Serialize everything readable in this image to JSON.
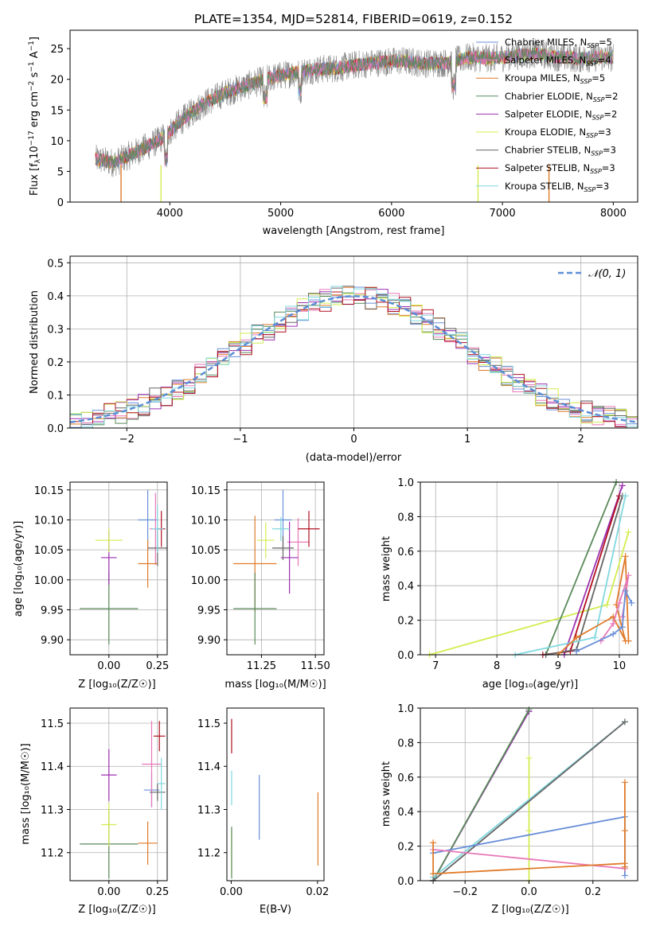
{
  "title": "PLATE=1354, MJD=52814, FIBERID=0619, z=0.152",
  "colors": {
    "chabrier_miles": "#6a8fd8",
    "salpeter_miles": "#e878b8",
    "kroupa_miles": "#e07b2a",
    "chabrier_elodie": "#5a8a5a",
    "salpeter_elodie": "#9b30b0",
    "kroupa_elodie": "#d4ec50",
    "chabrier_stelib": "#666666",
    "salpeter_stelib": "#b01020",
    "kroupa_stelib": "#80d8e0",
    "gaussian": "#5b8ed6",
    "grid": "#b0b0b0"
  },
  "chart_data": [
    {
      "id": "spectrum",
      "type": "line",
      "xlabel": "wavelength [Angstrom, rest frame]",
      "ylabel_prefix": "Flux [f",
      "ylabel_sub": "λ",
      "ylabel_mid": "10",
      "ylabel_exp": "−17",
      "ylabel_rest": " erg cm",
      "ylabel_exp2": "−2",
      "ylabel_rest2": " s",
      "ylabel_exp3": "−1",
      "ylabel_rest3": " A",
      "ylabel_exp4": "−1",
      "ylabel_end": "]",
      "xlim": [
        3100,
        8220
      ],
      "ylim": [
        0,
        28
      ],
      "xticks": [
        4000,
        5000,
        6000,
        7000,
        8000
      ],
      "yticks": [
        0,
        5,
        10,
        15,
        20,
        25
      ],
      "envelope_x": [
        3330,
        3500,
        3700,
        3900,
        4000,
        4100,
        4300,
        4500,
        4700,
        4900,
        5100,
        5300,
        5500,
        5700,
        5900,
        6100,
        6300,
        6500,
        6700,
        6900,
        7100,
        7300,
        7500,
        7700,
        7900,
        8000
      ],
      "envelope_y": [
        7.0,
        6.4,
        8.2,
        10.0,
        11.5,
        13.2,
        16.0,
        17.8,
        19.0,
        20.2,
        21.0,
        21.6,
        21.8,
        22.4,
        22.8,
        23.0,
        22.6,
        22.7,
        23.6,
        23.4,
        23.8,
        24.2,
        23.6,
        23.4,
        23.6,
        23.5
      ],
      "legend": [
        {
          "label": "Chabrier MILES, N",
          "sub": "SSP",
          "n": "=5"
        },
        {
          "label": "Salpeter MILES, N",
          "sub": "SSP",
          "n": "=4"
        },
        {
          "label": "Kroupa MILES, N",
          "sub": "SSP",
          "n": "=5"
        },
        {
          "label": "Chabrier ELODIE, N",
          "sub": "SSP",
          "n": "=2"
        },
        {
          "label": "Salpeter ELODIE, N",
          "sub": "SSP",
          "n": "=2"
        },
        {
          "label": "Kroupa ELODIE, N",
          "sub": "SSP",
          "n": "=3"
        },
        {
          "label": "Chabrier STELIB, N",
          "sub": "SSP",
          "n": "=3"
        },
        {
          "label": "Salpeter STELIB, N",
          "sub": "SSP",
          "n": "=3"
        },
        {
          "label": "Kroupa STELIB, N",
          "sub": "SSP",
          "n": "=3"
        }
      ]
    },
    {
      "id": "residuals",
      "type": "line",
      "xlabel": "(data-model)/error",
      "ylabel": "Normed distribution",
      "xlim": [
        -2.5,
        2.5
      ],
      "ylim": [
        0,
        0.52
      ],
      "xticks": [
        -2,
        -1,
        0,
        1,
        2
      ],
      "yticks": [
        0.0,
        0.1,
        0.2,
        0.3,
        0.4,
        0.5
      ],
      "bin_width": 0.1,
      "legend_label": "𝒩(0, 1)",
      "grid": true
    },
    {
      "id": "age_vs_Z",
      "type": "scatter",
      "xlabel": "Z [log₁₀(Z/Z☉)]",
      "ylabel": "age  [log₁₀(age/yr)]",
      "xlim": [
        -0.2,
        0.3
      ],
      "ylim": [
        9.875,
        10.163
      ],
      "xticks": [
        0.0,
        0.25
      ],
      "xticklabels": [
        "0.00",
        "0.25"
      ],
      "yticks": [
        9.9,
        9.95,
        10.0,
        10.05,
        10.1,
        10.15
      ],
      "yticklabels": [
        "9.90",
        "9.95",
        "10.00",
        "10.05",
        "10.10",
        "10.15"
      ],
      "points": [
        {
          "c": "chabrier_miles",
          "x": 0.2,
          "xe": 0.05,
          "y": 10.1,
          "ye": 0.05
        },
        {
          "c": "salpeter_miles",
          "x": 0.24,
          "xe": 0.03,
          "y": 10.085,
          "ye": 0.06
        },
        {
          "c": "kroupa_miles",
          "x": 0.2,
          "xe": 0.05,
          "y": 10.027,
          "ye": 0.04
        },
        {
          "c": "chabrier_elodie",
          "x": 0.0,
          "xe": 0.15,
          "y": 9.952,
          "ye": 0.06
        },
        {
          "c": "salpeter_elodie",
          "x": 0.0,
          "xe": 0.04,
          "y": 10.037,
          "ye": 0.045
        },
        {
          "c": "kroupa_elodie",
          "x": 0.0,
          "xe": 0.07,
          "y": 10.066,
          "ye": 0.02
        },
        {
          "c": "chabrier_stelib",
          "x": 0.25,
          "xe": 0.05,
          "y": 10.053,
          "ye": 0.03
        },
        {
          "c": "salpeter_stelib",
          "x": 0.27,
          "xe": 0.02,
          "y": 10.085,
          "ye": 0.03
        },
        {
          "c": "kroupa_stelib",
          "x": 0.25,
          "xe": 0.03,
          "y": 10.085,
          "ye": 0.04
        }
      ]
    },
    {
      "id": "age_vs_mass",
      "type": "scatter",
      "xlabel": "mass [log₁₀(M/M☉)]",
      "xlim": [
        11.09,
        11.54
      ],
      "ylim": [
        9.875,
        10.163
      ],
      "xticks": [
        11.25,
        11.5
      ],
      "xticklabels": [
        "11.25",
        "11.50"
      ],
      "yticks": [
        9.9,
        9.95,
        10.0,
        10.05,
        10.1,
        10.15
      ],
      "yticklabels": [
        "9.90",
        "9.95",
        "10.00",
        "10.05",
        "10.10",
        "10.15"
      ],
      "points": [
        {
          "c": "chabrier_miles",
          "x": 11.35,
          "xe": 0.04,
          "y": 10.1,
          "ye": 0.05
        },
        {
          "c": "salpeter_miles",
          "x": 11.42,
          "xe": 0.05,
          "y": 10.063,
          "ye": 0.04
        },
        {
          "c": "kroupa_miles",
          "x": 11.22,
          "xe": 0.1,
          "y": 10.027,
          "ye": 0.08
        },
        {
          "c": "chabrier_elodie",
          "x": 11.22,
          "xe": 0.1,
          "y": 9.952,
          "ye": 0.06
        },
        {
          "c": "salpeter_elodie",
          "x": 11.38,
          "xe": 0.04,
          "y": 10.037,
          "ye": 0.06
        },
        {
          "c": "kroupa_elodie",
          "x": 11.27,
          "xe": 0.04,
          "y": 10.066,
          "ye": 0.03
        },
        {
          "c": "chabrier_stelib",
          "x": 11.35,
          "xe": 0.05,
          "y": 10.053,
          "ye": 0.02
        },
        {
          "c": "salpeter_stelib",
          "x": 11.47,
          "xe": 0.05,
          "y": 10.085,
          "ye": 0.03
        },
        {
          "c": "kroupa_stelib",
          "x": 11.34,
          "xe": 0.04,
          "y": 10.085,
          "ye": 0.02
        }
      ]
    },
    {
      "id": "mass_vs_Z",
      "type": "scatter",
      "xlabel": "Z [log₁₀(Z/Z☉)]",
      "ylabel": "mass [log₁₀(M/M☉)]",
      "xlim": [
        -0.2,
        0.3
      ],
      "ylim": [
        11.135,
        11.535
      ],
      "xticks": [
        0.0,
        0.25
      ],
      "xticklabels": [
        "0.00",
        "0.25"
      ],
      "yticks": [
        11.2,
        11.3,
        11.4,
        11.5
      ],
      "yticklabels": [
        "11.2",
        "11.3",
        "11.4",
        "11.5"
      ],
      "points": [
        {
          "c": "chabrier_miles",
          "x": 0.22,
          "xe": 0.04,
          "y": 11.345,
          "ye": 0.04
        },
        {
          "c": "salpeter_miles",
          "x": 0.22,
          "xe": 0.05,
          "y": 11.405,
          "ye": 0.1
        },
        {
          "c": "kroupa_miles",
          "x": 0.2,
          "xe": 0.05,
          "y": 11.222,
          "ye": 0.05
        },
        {
          "c": "chabrier_elodie",
          "x": 0.0,
          "xe": 0.15,
          "y": 11.22,
          "ye": 0.08
        },
        {
          "c": "salpeter_elodie",
          "x": 0.0,
          "xe": 0.04,
          "y": 11.38,
          "ye": 0.06
        },
        {
          "c": "kroupa_elodie",
          "x": 0.0,
          "xe": 0.04,
          "y": 11.265,
          "ye": 0.05
        },
        {
          "c": "chabrier_stelib",
          "x": 0.25,
          "xe": 0.04,
          "y": 11.34,
          "ye": 0.02
        },
        {
          "c": "salpeter_stelib",
          "x": 0.26,
          "xe": 0.03,
          "y": 11.47,
          "ye": 0.035
        },
        {
          "c": "kroupa_stelib",
          "x": 0.27,
          "xe": 0.02,
          "y": 11.36,
          "ye": 0.06
        }
      ]
    },
    {
      "id": "mass_vs_EBV",
      "type": "scatter",
      "xlabel": "E(B-V)",
      "xlim": [
        -0.001,
        0.0215
      ],
      "ylim": [
        11.135,
        11.535
      ],
      "xticks": [
        0.0,
        0.02
      ],
      "xticklabels": [
        "0.00",
        "0.02"
      ],
      "yticks": [
        11.2,
        11.3,
        11.4,
        11.5
      ],
      "yticklabels": [
        "11.2",
        "11.3",
        "11.4",
        "11.5"
      ],
      "points": [
        {
          "c": "chabrier_miles",
          "x": 0.0065,
          "xe": 0,
          "y": 11.305,
          "ye": 0.075
        },
        {
          "c": "salpeter_stelib",
          "x": 0.0001,
          "xe": 0,
          "y": 11.47,
          "ye": 0.04
        },
        {
          "c": "kroupa_miles",
          "x": 0.0201,
          "xe": 0,
          "y": 11.255,
          "ye": 0.085
        },
        {
          "c": "kroupa_elodie",
          "x": 0.0001,
          "xe": 0,
          "y": 11.2,
          "ye": 0.05
        },
        {
          "c": "kroupa_stelib",
          "x": 0.0001,
          "xe": 0,
          "y": 11.35,
          "ye": 0.04
        },
        {
          "c": "chabrier_elodie",
          "x": 0.0001,
          "xe": 0,
          "y": 11.2,
          "ye": 0.06
        }
      ]
    },
    {
      "id": "weight_vs_age",
      "type": "line",
      "xlabel": "age  [log₁₀(age/yr)]",
      "ylabel": "mass weight",
      "xlim": [
        6.75,
        10.3
      ],
      "ylim": [
        0,
        1
      ],
      "xticks": [
        7,
        8,
        9,
        10
      ],
      "xticklabels": [
        "7",
        "8",
        "9",
        "10"
      ],
      "yticks": [
        0,
        0.2,
        0.4,
        0.6,
        0.8,
        1.0
      ],
      "yticklabels": [
        "0.0",
        "0.2",
        "0.4",
        "0.6",
        "0.8",
        "1.0"
      ],
      "series": [
        {
          "c": "kroupa_elodie",
          "x": [
            6.9,
            9.8,
            10.15
          ],
          "y": [
            0.0,
            0.29,
            0.71
          ]
        },
        {
          "c": "chabrier_elodie",
          "x": [
            8.8,
            9.95
          ],
          "y": [
            0.0,
            1.0
          ]
        },
        {
          "c": "salpeter_elodie",
          "x": [
            9.1,
            10.05
          ],
          "y": [
            0.0,
            0.98
          ]
        },
        {
          "c": "salpeter_stelib",
          "x": [
            8.75,
            9.2,
            10.0
          ],
          "y": [
            0.0,
            0.02,
            0.92
          ]
        },
        {
          "c": "chabrier_stelib",
          "x": [
            8.8,
            9.3,
            10.05
          ],
          "y": [
            0.0,
            0.03,
            0.92
          ]
        },
        {
          "c": "kroupa_stelib",
          "x": [
            8.3,
            9.6,
            10.1
          ],
          "y": [
            0.0,
            0.1,
            0.92
          ]
        },
        {
          "c": "kroupa_miles",
          "x": [
            9.0,
            9.3,
            9.9,
            10.1,
            9.95,
            10.1,
            10.15
          ],
          "y": [
            0.0,
            0.1,
            0.22,
            0.08,
            0.29,
            0.57,
            0.08
          ]
        },
        {
          "c": "salpeter_miles",
          "x": [
            9.7,
            9.9,
            10.0,
            10.15,
            10.05
          ],
          "y": [
            0.08,
            0.18,
            0.3,
            0.46,
            0.22
          ]
        },
        {
          "c": "chabrier_miles",
          "x": [
            9.3,
            9.9,
            10.05,
            10.1,
            10.2
          ],
          "y": [
            0.02,
            0.12,
            0.16,
            0.37,
            0.3
          ]
        }
      ]
    },
    {
      "id": "weight_vs_Z",
      "type": "line",
      "xlabel": "Z [log₁₀(Z/Z☉)]",
      "ylabel": "mass weight",
      "xlim": [
        -0.34,
        0.34
      ],
      "ylim": [
        0,
        1
      ],
      "xticks": [
        -0.2,
        0.0,
        0.2
      ],
      "xticklabels": [
        "−0.2",
        "0.0",
        "0.2"
      ],
      "yticks": [
        0,
        0.2,
        0.4,
        0.6,
        0.8,
        1.0
      ],
      "yticklabels": [
        "0.0",
        "0.2",
        "0.4",
        "0.6",
        "0.8",
        "1.0"
      ],
      "series": [
        {
          "c": "salpeter_elodie",
          "x": [
            -0.3,
            0.0
          ],
          "y": [
            0.0,
            0.98
          ]
        },
        {
          "c": "chabrier_elodie",
          "x": [
            -0.3,
            0.0
          ],
          "y": [
            0.0,
            0.99
          ]
        },
        {
          "c": "kroupa_elodie",
          "x": [
            0.0,
            0.0,
            0.0
          ],
          "y": [
            0.0,
            0.29,
            0.71
          ]
        },
        {
          "c": "kroupa_stelib",
          "x": [
            -0.3,
            0.3
          ],
          "y": [
            0.02,
            0.92
          ]
        },
        {
          "c": "chabrier_stelib",
          "x": [
            -0.3,
            0.3
          ],
          "y": [
            0.0,
            0.92
          ]
        },
        {
          "c": "chabrier_miles",
          "x": [
            -0.3,
            0.3,
            0.3
          ],
          "y": [
            0.16,
            0.37,
            0.03
          ]
        },
        {
          "c": "salpeter_miles",
          "x": [
            -0.3,
            0.3
          ],
          "y": [
            0.18,
            0.07
          ]
        },
        {
          "c": "kroupa_miles",
          "x": [
            -0.3,
            -0.3,
            0.3,
            0.3,
            0.3,
            0.3
          ],
          "y": [
            0.22,
            0.04,
            0.1,
            0.29,
            0.57,
            0.08
          ]
        }
      ]
    }
  ]
}
